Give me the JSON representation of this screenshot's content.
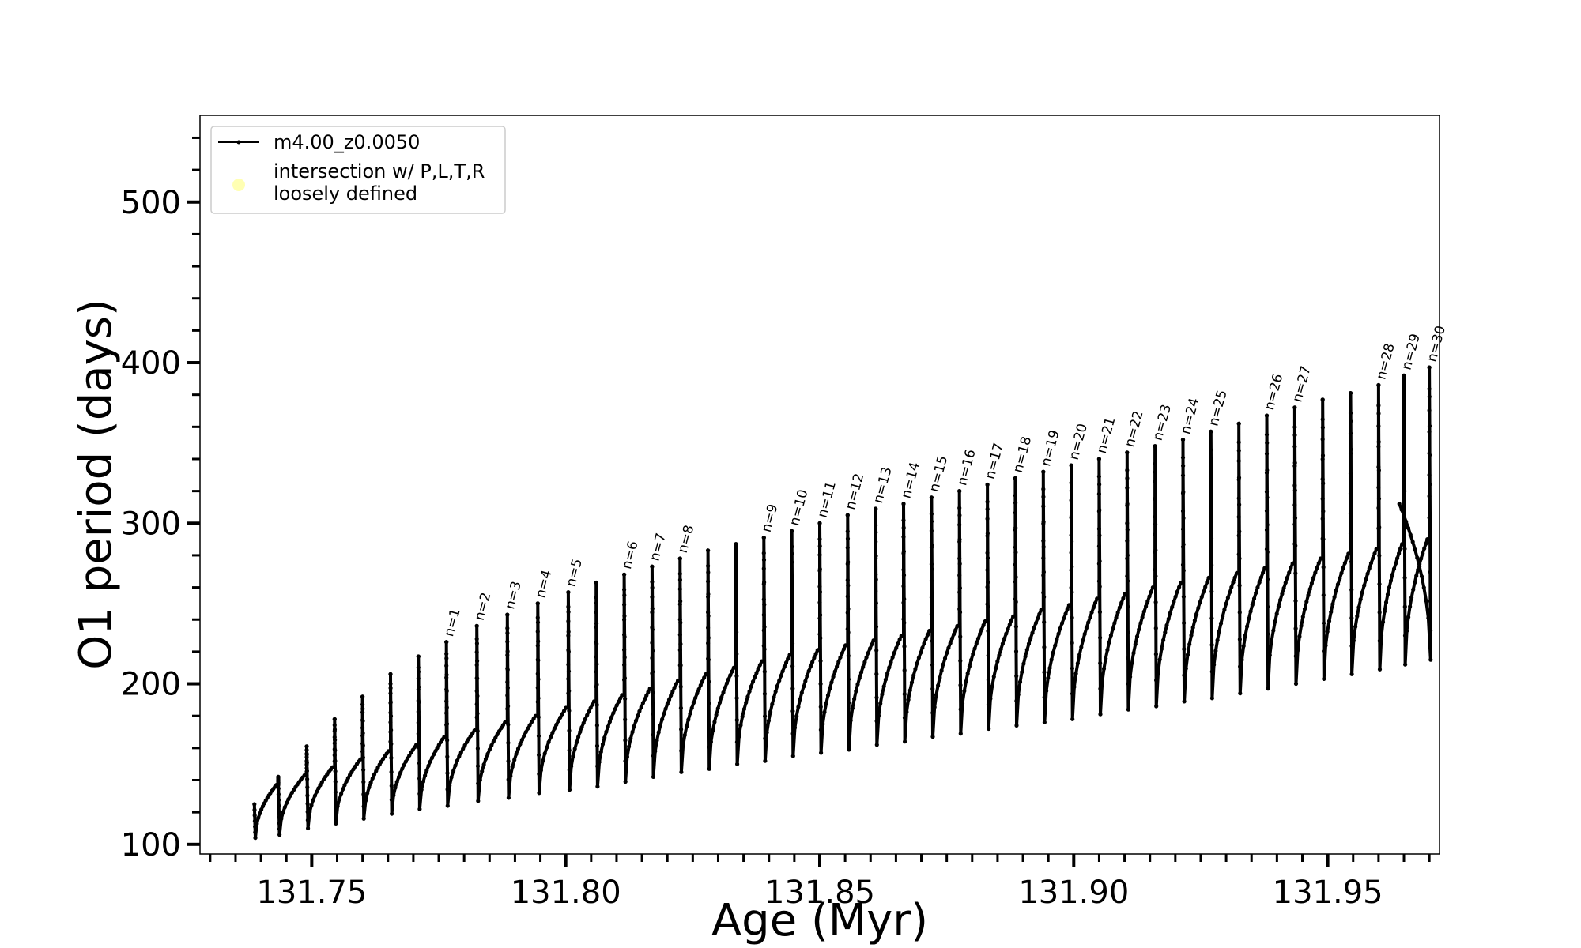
{
  "chart_data": {
    "type": "line",
    "title": "",
    "xlabel": "Age (Myr)",
    "ylabel": "O1 period (days)",
    "xlim": [
      131.728,
      131.972
    ],
    "ylim": [
      94,
      554
    ],
    "x_ticks": [
      131.75,
      131.8,
      131.85,
      131.9,
      131.95
    ],
    "x_tick_labels": [
      "131.75",
      "131.80",
      "131.85",
      "131.90",
      "131.95"
    ],
    "y_ticks": [
      100,
      200,
      300,
      400,
      500
    ],
    "y_tick_labels": [
      "100",
      "200",
      "300",
      "400",
      "500"
    ],
    "x_minor_step": 0.005,
    "y_minor_step": 20,
    "grid": false,
    "legend": {
      "placement": "top-left",
      "entries": [
        {
          "label": "m4.00_z0.0050",
          "marker": "line-with-dots",
          "color": "#000000"
        },
        {
          "label_lines": [
            "intersection w/ P,L,T,R",
            "loosely defined"
          ],
          "marker": "circle",
          "color": "#ffffb3"
        }
      ]
    },
    "series": [
      {
        "name": "m4.00_z0.0050",
        "color": "#000000",
        "start_age": 131.7387,
        "start_baseline": 125,
        "end_age": 131.9641,
        "end_value": 312,
        "pulses": [
          {
            "age": 131.7434,
            "min": 106,
            "base": 137,
            "max": 142,
            "label": ""
          },
          {
            "age": 131.749,
            "min": 110,
            "base": 143,
            "max": 161,
            "label": ""
          },
          {
            "age": 131.7545,
            "min": 113,
            "base": 148,
            "max": 178,
            "label": ""
          },
          {
            "age": 131.76,
            "min": 116,
            "base": 153,
            "max": 192,
            "label": ""
          },
          {
            "age": 131.7655,
            "min": 119,
            "base": 158,
            "max": 206,
            "label": ""
          },
          {
            "age": 131.771,
            "min": 122,
            "base": 162,
            "max": 217,
            "label": ""
          },
          {
            "age": 131.7765,
            "min": 124,
            "base": 167,
            "max": 226,
            "label": "n=1"
          },
          {
            "age": 131.7825,
            "min": 127,
            "base": 171,
            "max": 236,
            "label": "n=2"
          },
          {
            "age": 131.7885,
            "min": 129,
            "base": 176,
            "max": 243,
            "label": "n=3"
          },
          {
            "age": 131.7945,
            "min": 132,
            "base": 180,
            "max": 250,
            "label": "n=4"
          },
          {
            "age": 131.8005,
            "min": 134,
            "base": 185,
            "max": 257,
            "label": "n=5"
          },
          {
            "age": 131.806,
            "min": 136,
            "base": 189,
            "max": 263,
            "label": ""
          },
          {
            "age": 131.8115,
            "min": 139,
            "base": 193,
            "max": 268,
            "label": "n=6"
          },
          {
            "age": 131.817,
            "min": 142,
            "base": 197,
            "max": 273,
            "label": "n=7"
          },
          {
            "age": 131.8225,
            "min": 145,
            "base": 202,
            "max": 278,
            "label": "n=8"
          },
          {
            "age": 131.828,
            "min": 147,
            "base": 206,
            "max": 283,
            "label": ""
          },
          {
            "age": 131.8335,
            "min": 150,
            "base": 210,
            "max": 287,
            "label": ""
          },
          {
            "age": 131.839,
            "min": 152,
            "base": 214,
            "max": 291,
            "label": "n=9"
          },
          {
            "age": 131.8445,
            "min": 155,
            "base": 218,
            "max": 295,
            "label": "n=10"
          },
          {
            "age": 131.85,
            "min": 157,
            "base": 221,
            "max": 300,
            "label": "n=11"
          },
          {
            "age": 131.8555,
            "min": 159,
            "base": 224,
            "max": 305,
            "label": "n=12"
          },
          {
            "age": 131.861,
            "min": 162,
            "base": 227,
            "max": 309,
            "label": "n=13"
          },
          {
            "age": 131.8665,
            "min": 164,
            "base": 230,
            "max": 312,
            "label": "n=14"
          },
          {
            "age": 131.872,
            "min": 167,
            "base": 233,
            "max": 316,
            "label": "n=15"
          },
          {
            "age": 131.8775,
            "min": 169,
            "base": 236,
            "max": 320,
            "label": "n=16"
          },
          {
            "age": 131.883,
            "min": 172,
            "base": 239,
            "max": 324,
            "label": "n=17"
          },
          {
            "age": 131.8885,
            "min": 174,
            "base": 242,
            "max": 328,
            "label": "n=18"
          },
          {
            "age": 131.894,
            "min": 176,
            "base": 246,
            "max": 332,
            "label": "n=19"
          },
          {
            "age": 131.8995,
            "min": 178,
            "base": 249,
            "max": 336,
            "label": "n=20"
          },
          {
            "age": 131.905,
            "min": 181,
            "base": 253,
            "max": 340,
            "label": "n=21"
          },
          {
            "age": 131.9105,
            "min": 184,
            "base": 256,
            "max": 344,
            "label": "n=22"
          },
          {
            "age": 131.916,
            "min": 186,
            "base": 260,
            "max": 348,
            "label": "n=23"
          },
          {
            "age": 131.9215,
            "min": 189,
            "base": 263,
            "max": 352,
            "label": "n=24"
          },
          {
            "age": 131.927,
            "min": 191,
            "base": 266,
            "max": 357,
            "label": "n=25"
          },
          {
            "age": 131.9325,
            "min": 194,
            "base": 269,
            "max": 362,
            "label": ""
          },
          {
            "age": 131.938,
            "min": 197,
            "base": 272,
            "max": 367,
            "label": "n=26"
          },
          {
            "age": 131.9435,
            "min": 200,
            "base": 275,
            "max": 372,
            "label": "n=27"
          },
          {
            "age": 131.949,
            "min": 203,
            "base": 278,
            "max": 377,
            "label": ""
          },
          {
            "age": 131.9545,
            "min": 206,
            "base": 281,
            "max": 381,
            "label": ""
          },
          {
            "age": 131.96,
            "min": 209,
            "base": 284,
            "max": 386,
            "label": "n=28"
          },
          {
            "age": 131.965,
            "min": 212,
            "base": 287,
            "max": 392,
            "label": "n=29"
          },
          {
            "age": 131.97,
            "min": 215,
            "base": 290,
            "max": 397,
            "label": "n=30"
          }
        ]
      }
    ]
  }
}
